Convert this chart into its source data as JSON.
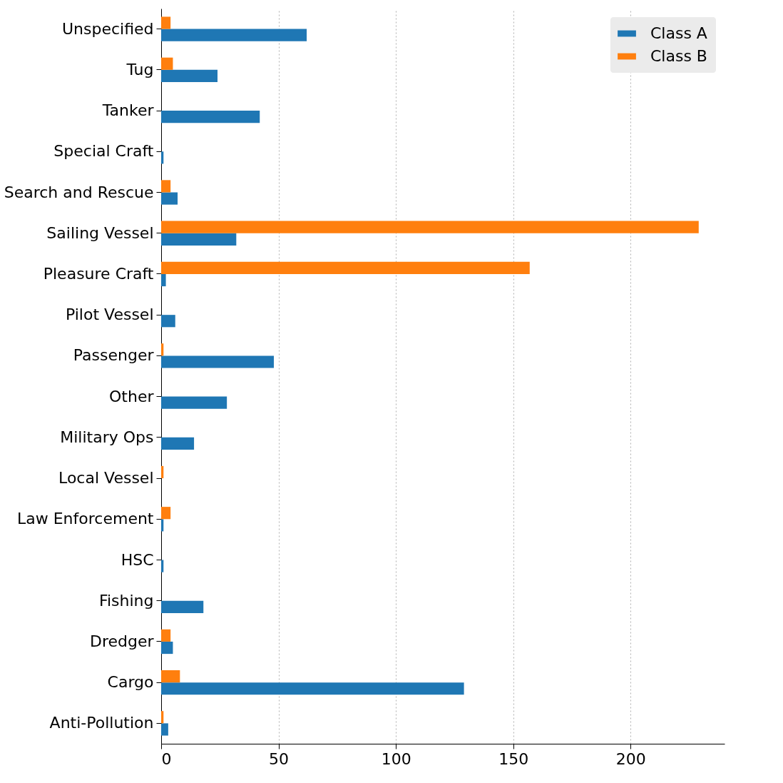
{
  "chart_data": {
    "type": "bar",
    "orientation": "horizontal",
    "categories": [
      "Unspecified",
      "Tug",
      "Tanker",
      "Special Craft",
      "Search and Rescue",
      "Sailing Vessel",
      "Pleasure Craft",
      "Pilot Vessel",
      "Passenger",
      "Other",
      "Military Ops",
      "Local Vessel",
      "Law Enforcement",
      "HSC",
      "Fishing",
      "Dredger",
      "Cargo",
      "Anti-Pollution"
    ],
    "series": [
      {
        "name": "Class A",
        "color": "#1f77b4",
        "values": [
          62,
          24,
          42,
          1,
          7,
          32,
          2,
          6,
          48,
          28,
          14,
          0,
          1,
          1,
          18,
          5,
          129,
          3
        ]
      },
      {
        "name": "Class B",
        "color": "#ff7f0e",
        "values": [
          4,
          5,
          0,
          0,
          4,
          229,
          157,
          0,
          1,
          0,
          0,
          1,
          4,
          0,
          0,
          4,
          8,
          1
        ]
      }
    ],
    "xlim": [
      0,
      240
    ],
    "xticks": [
      0,
      50,
      100,
      150,
      200
    ],
    "grid": "x",
    "legend": "top right"
  }
}
